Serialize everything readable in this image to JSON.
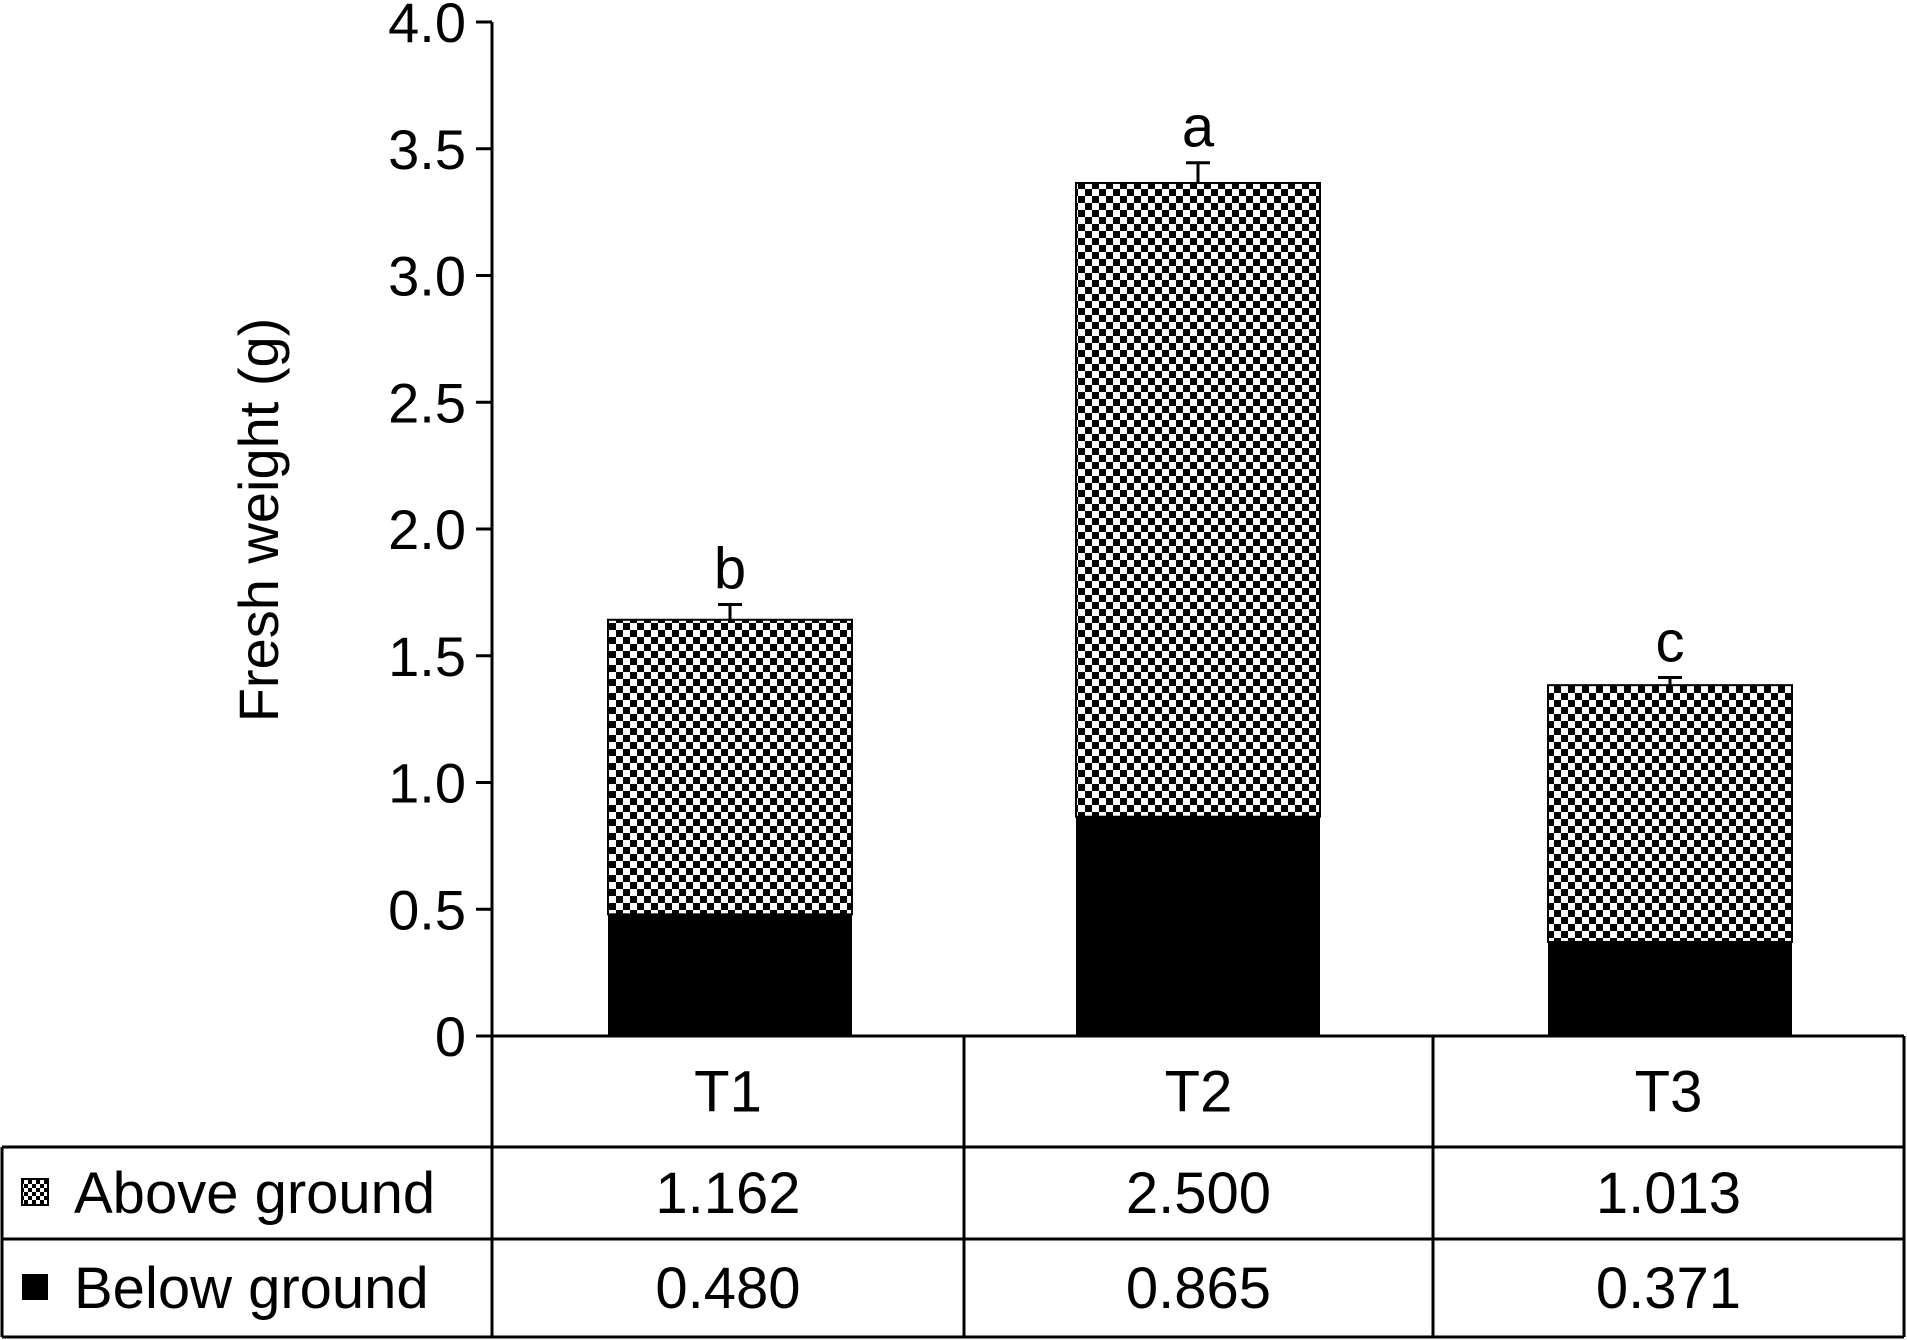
{
  "chart_data": {
    "type": "bar",
    "stacked": true,
    "categories": [
      "T1",
      "T2",
      "T3"
    ],
    "series": [
      {
        "name": "Below ground",
        "values": [
          0.48,
          0.865,
          0.371
        ],
        "labels": [
          "0.480",
          "0.865",
          "0.371"
        ],
        "pattern": "solid",
        "color": "#000000"
      },
      {
        "name": "Above ground",
        "values": [
          1.162,
          2.5,
          1.013
        ],
        "labels": [
          "1.162",
          "2.500",
          "1.013"
        ],
        "pattern": "checker",
        "color": "#000000"
      }
    ],
    "error_bars": [
      0.06,
      0.08,
      0.03
    ],
    "significance": [
      "b",
      "a",
      "c"
    ],
    "ylabel": "Fresh weight (g)",
    "xlabel": "",
    "ylim": [
      0,
      4.0
    ],
    "yticks": [
      0,
      0.5,
      1.0,
      1.5,
      2.0,
      2.5,
      3.0,
      3.5,
      4.0
    ],
    "ytick_labels": [
      "0",
      "0.5",
      "1.0",
      "1.5",
      "2.0",
      "2.5",
      "3.0",
      "3.5",
      "4.0"
    ],
    "grid": false,
    "legend": "data-table-below"
  }
}
